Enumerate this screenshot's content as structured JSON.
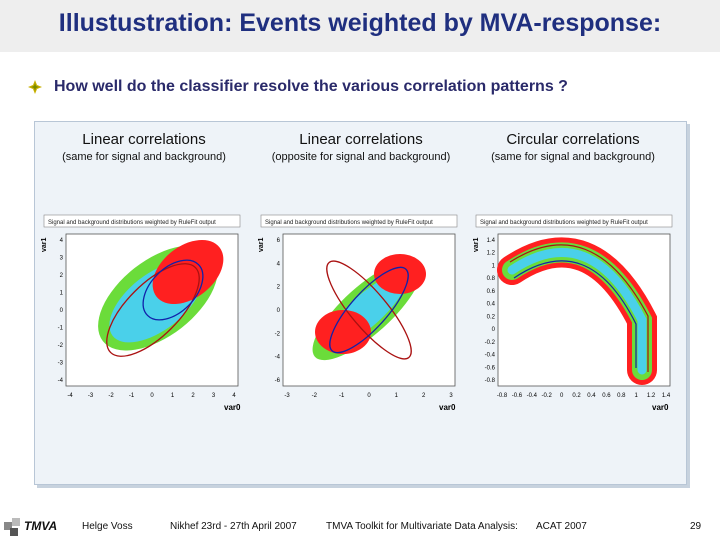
{
  "slide": {
    "title": "Illustustration: Events weighted by MVA-response:",
    "question": "How well do the classifier resolve the various correlation patterns ?"
  },
  "columns": [
    {
      "title": "Linear correlations",
      "subtitle": "(same for signal and background)"
    },
    {
      "title": "Linear correlations",
      "subtitle": "(opposite for signal and background)"
    },
    {
      "title": "Circular correlations",
      "subtitle": "(same for signal and background)"
    }
  ],
  "plots": [
    {
      "header": "Signal and background distributions weighted by RuleFit output",
      "xlabel": "var0",
      "ylabel": "var1",
      "xticks": [
        "-4",
        "-3",
        "-2",
        "-1",
        "0",
        "1",
        "2",
        "3",
        "4"
      ],
      "yticks": [
        "4",
        "3",
        "2",
        "1",
        "0",
        "-1",
        "-2",
        "-3",
        "-4"
      ]
    },
    {
      "header": "Signal and background distributions weighted by RuleFit output",
      "xlabel": "var0",
      "ylabel": "var1",
      "xticks": [
        "-3",
        "-2",
        "-1",
        "0",
        "1",
        "2",
        "3"
      ],
      "yticks": [
        "6",
        "4",
        "2",
        "0",
        "-2",
        "-4",
        "-6"
      ]
    },
    {
      "header": "Signal and background distributions weighted by RuleFit output",
      "xlabel": "var0",
      "ylabel": "var1",
      "xticks": [
        "-0.8",
        "-0.6",
        "-0.4",
        "-0.2",
        "0",
        "0.2",
        "0.4",
        "0.6",
        "0.8",
        "1",
        "1.2",
        "1.4"
      ],
      "yticks": [
        "1.4",
        "1.2",
        "1",
        "0.8",
        "0.6",
        "0.4",
        "0.2",
        "0",
        "-0.2",
        "-0.4",
        "-0.6",
        "-0.8"
      ]
    }
  ],
  "footer": {
    "logo": "TMVA",
    "author": "Helge Voss",
    "venue": "Nikhef 23rd - 27th April 2007",
    "topic": "TMVA Toolkit for Multivariate Data Analysis:",
    "conference": "ACAT 2007",
    "page": "29"
  },
  "colors": {
    "title": "#1f2f7f",
    "signal": "#ff1a1a",
    "background_green": "#66dd33",
    "background_cyan": "#33ccee",
    "contour_red": "#aa1111",
    "contour_blue": "#1122aa"
  }
}
